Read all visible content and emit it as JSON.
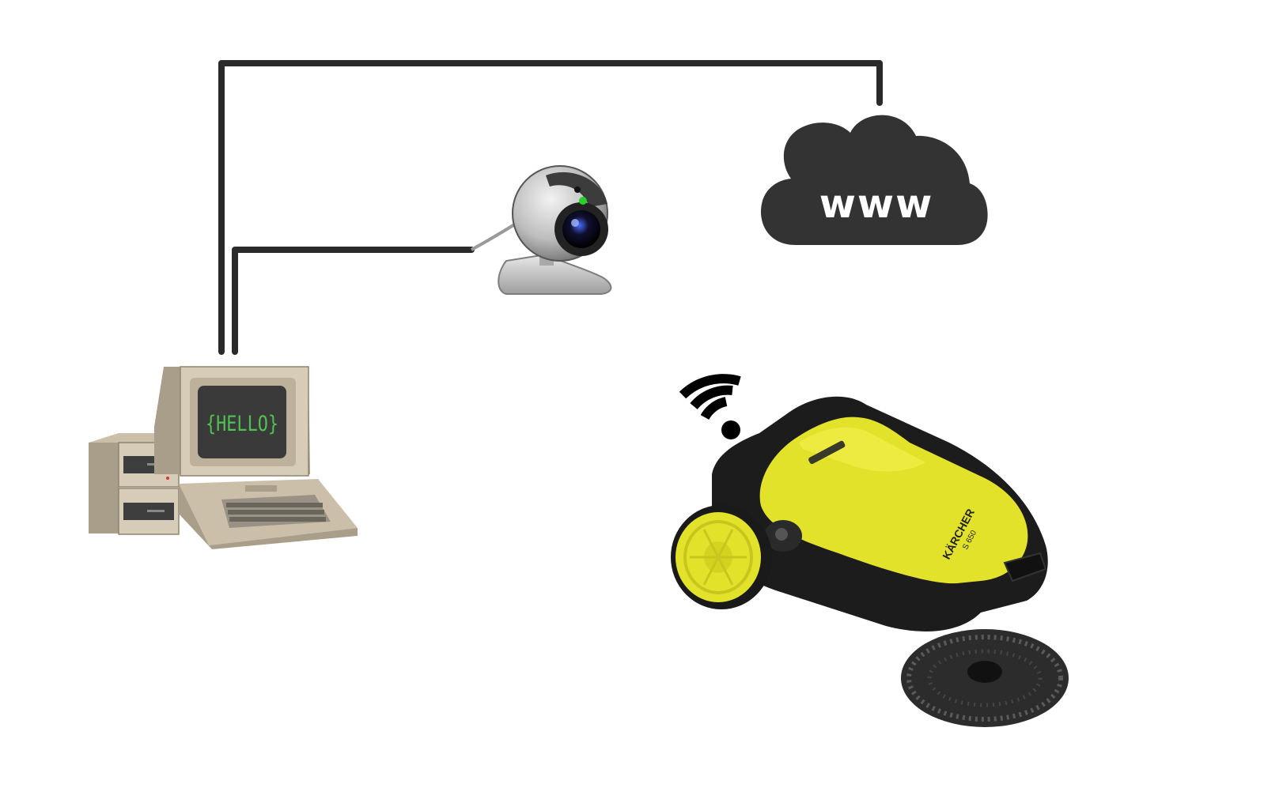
{
  "colors": {
    "wire": "#2a2a2a",
    "cloud": "#333333",
    "cloud_text": "#ffffff",
    "screen_text": "#4fc24f",
    "sweeper_body": "#e3e22a",
    "sweeper_frame": "#1c1c1c"
  },
  "cloud": {
    "label": "www",
    "icon": "cloud-icon"
  },
  "computer": {
    "screen_text": "{HELLO}",
    "icon": "retro-computer-icon"
  },
  "webcam": {
    "icon": "webcam-icon"
  },
  "sweeper": {
    "brand": "KÄRCHER",
    "model": "S 650",
    "icon": "sweeper-robot-icon"
  },
  "wifi": {
    "icon": "wifi-icon"
  }
}
